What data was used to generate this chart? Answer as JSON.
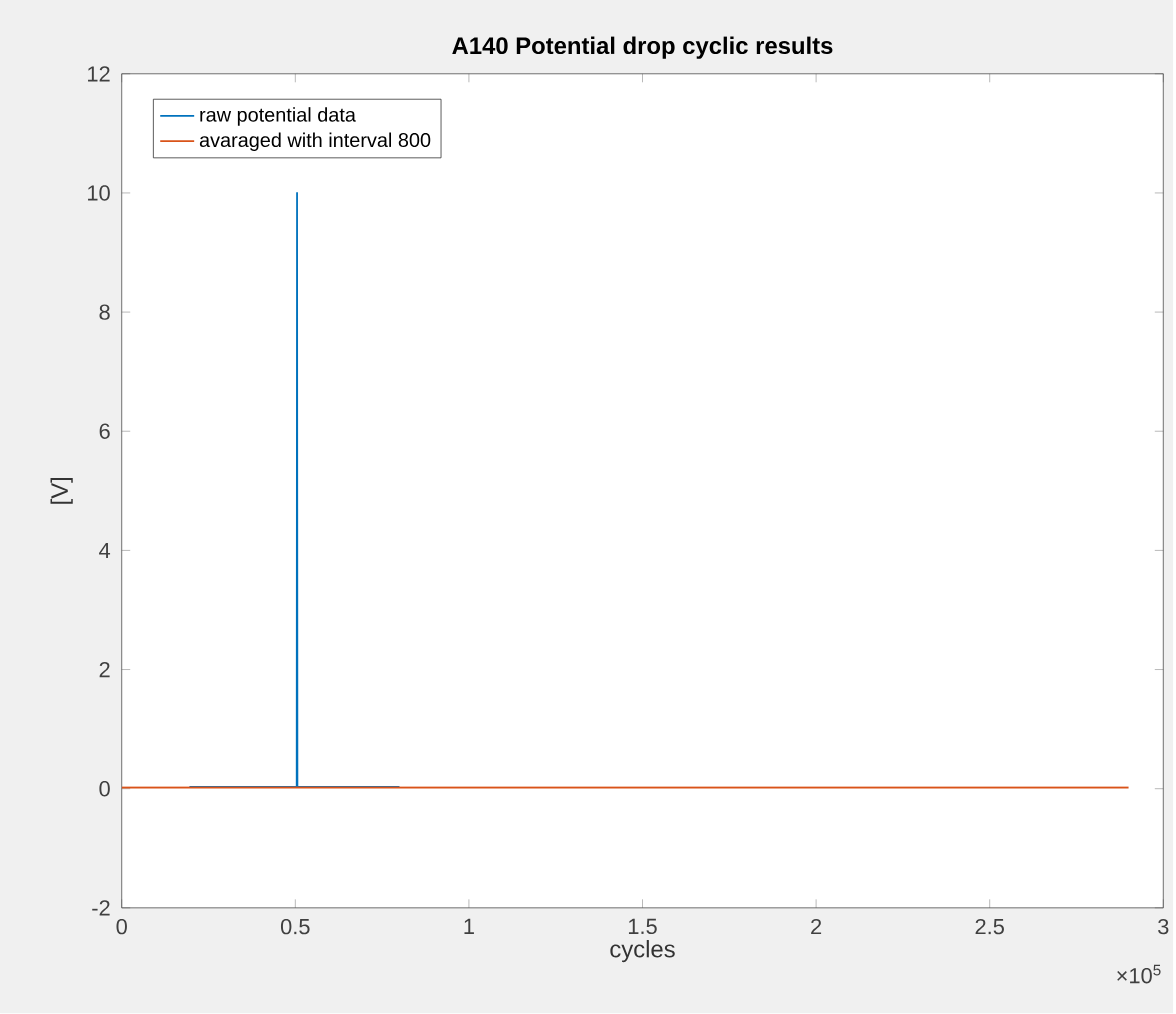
{
  "chart_data": {
    "type": "line",
    "title": "A140 Potential drop cyclic results",
    "xlabel": "cycles",
    "ylabel": "[V]",
    "series": [
      {
        "name": "raw potential data",
        "color": "#0072bd",
        "x": [
          0.195,
          0.504,
          0.505,
          0.506,
          0.8
        ],
        "values": [
          0.03,
          0.03,
          10,
          0.03,
          0.03
        ]
      },
      {
        "name": "avaraged with interval 800",
        "color": "#d95319",
        "x": [
          0,
          2.9
        ],
        "values": [
          0.02,
          0.02
        ]
      }
    ],
    "xlim": [
      0,
      3
    ],
    "xticks": [
      0,
      0.5,
      1,
      1.5,
      2,
      2.5,
      3
    ],
    "ylim": [
      -2,
      12
    ],
    "yticks": [
      -2,
      0,
      2,
      4,
      6,
      8,
      10,
      12
    ],
    "annotations": [
      "×10$^{5}$"
    ],
    "legend": "top left",
    "grid": false,
    "marker": "none",
    "line_style": "solid"
  }
}
